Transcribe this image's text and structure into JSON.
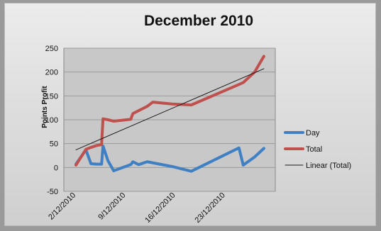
{
  "chart_data": {
    "type": "line",
    "title": "December 2010",
    "ylabel": "Points Profit",
    "xlabel": "",
    "ylim": [
      -50,
      250
    ],
    "yticks": [
      -50,
      0,
      50,
      100,
      150,
      200,
      250
    ],
    "x_ticks": [
      "2/12/2010",
      "9/12/2010",
      "16/12/2010",
      "23/12/2010"
    ],
    "grid": "horizontal",
    "legend_position": "right",
    "series": [
      {
        "name": "Day",
        "color": "#3f7fc4",
        "points": [
          [
            2,
            7
          ],
          [
            3.4,
            37
          ],
          [
            4.1,
            8
          ],
          [
            4.9,
            7
          ],
          [
            5.6,
            7
          ],
          [
            5.8,
            45
          ],
          [
            6.5,
            14
          ],
          [
            7.3,
            -7
          ],
          [
            9.7,
            6
          ],
          [
            10.0,
            12
          ],
          [
            10.8,
            6
          ],
          [
            12.0,
            12
          ],
          [
            15.5,
            2
          ],
          [
            18.2,
            -8
          ],
          [
            24.9,
            41
          ],
          [
            25.5,
            5
          ],
          [
            27.1,
            22
          ],
          [
            28.4,
            40
          ]
        ]
      },
      {
        "name": "Total",
        "color": "#c0504d",
        "points": [
          [
            2,
            5
          ],
          [
            3.4,
            38
          ],
          [
            4.1,
            42
          ],
          [
            4.9,
            46
          ],
          [
            5.6,
            48
          ],
          [
            5.8,
            102
          ],
          [
            6.5,
            100
          ],
          [
            7.3,
            97
          ],
          [
            9.7,
            101
          ],
          [
            10.0,
            113
          ],
          [
            10.8,
            119
          ],
          [
            12.0,
            128
          ],
          [
            12.8,
            137
          ],
          [
            15.5,
            133
          ],
          [
            18.2,
            131
          ],
          [
            24.9,
            174
          ],
          [
            25.5,
            178
          ],
          [
            27.1,
            200
          ],
          [
            28.4,
            233
          ]
        ]
      },
      {
        "name": "Linear (Total)",
        "color": "#1a1a1a",
        "trendline": true,
        "points": [
          [
            2,
            37
          ],
          [
            28.4,
            207
          ]
        ]
      }
    ]
  }
}
